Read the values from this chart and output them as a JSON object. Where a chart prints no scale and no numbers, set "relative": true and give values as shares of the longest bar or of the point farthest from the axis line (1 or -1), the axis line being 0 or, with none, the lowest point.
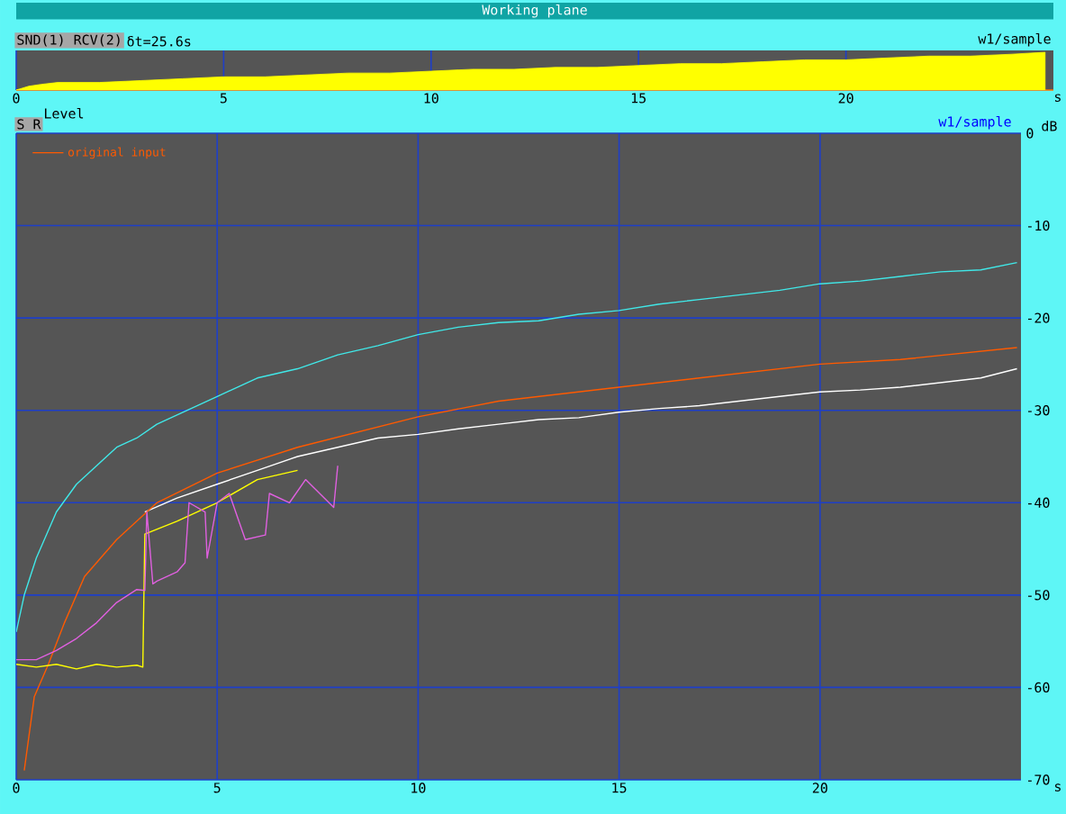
{
  "chart_data": [
    {
      "type": "area",
      "title": "Working plane",
      "xlabel": "s",
      "relative": true,
      "annotations": [
        "SND(1) RCV(2)",
        "δt=25.6s",
        "w1/sample"
      ],
      "x": [
        0,
        0.3,
        0.6,
        1,
        2,
        3,
        4,
        5,
        6,
        7,
        8,
        9,
        10,
        11,
        12,
        13,
        14,
        15,
        16,
        17,
        18,
        19,
        20,
        21,
        22,
        23,
        24,
        24.8
      ],
      "series": [
        {
          "color": "#ffff00",
          "values": [
            0,
            0.1,
            0.15,
            0.2,
            0.2,
            0.25,
            0.3,
            0.35,
            0.35,
            0.4,
            0.45,
            0.45,
            0.5,
            0.55,
            0.55,
            0.6,
            0.6,
            0.65,
            0.7,
            0.7,
            0.75,
            0.8,
            0.8,
            0.85,
            0.9,
            0.9,
            0.95,
            1
          ]
        }
      ],
      "xlim": [
        0,
        25
      ],
      "xticks": [
        0,
        5,
        10,
        15,
        20
      ],
      "grid": "x"
    },
    {
      "type": "line",
      "title": "Level",
      "xlabel": "s",
      "ylabel": "dB",
      "annotations": [
        "S R",
        "w1/sample"
      ],
      "xlim": [
        0,
        25
      ],
      "ylim": [
        -70,
        0
      ],
      "xticks": [
        0,
        5,
        10,
        15,
        20
      ],
      "yticks": [
        0,
        -10,
        -20,
        -30,
        -40,
        -50,
        -60,
        -70
      ],
      "grid": true,
      "legend": "top left",
      "series": [
        {
          "color": "#40e8e8",
          "x": [
            0,
            0.2,
            0.5,
            1,
            1.5,
            2,
            2.5,
            3,
            3.5,
            4,
            5,
            6,
            7,
            8,
            9,
            10,
            11,
            12,
            13,
            14,
            15,
            16,
            17,
            18,
            19,
            20,
            21,
            22,
            23,
            24,
            24.9
          ],
          "values": [
            -54,
            -50,
            -46,
            -41,
            -38,
            -36,
            -34,
            -33,
            -31.5,
            -30.5,
            -28.5,
            -26.5,
            -25.5,
            -24,
            -23,
            -21.8,
            -21,
            -20.5,
            -20.3,
            -19.6,
            -19.2,
            -18.5,
            -18,
            -17.5,
            -17,
            -16.3,
            -16,
            -15.5,
            -15,
            -14.8,
            -14
          ]
        },
        {
          "color": "#ffffff",
          "x": [
            3.2,
            4,
            5,
            6,
            7,
            8,
            9,
            10,
            11,
            12,
            13,
            14,
            15,
            16,
            17,
            18,
            19,
            20,
            21,
            22,
            23,
            24,
            24.9
          ],
          "values": [
            -41,
            -39.5,
            -38,
            -36.5,
            -35,
            -34,
            -33,
            -32.6,
            -32,
            -31.5,
            -31,
            -30.8,
            -30.2,
            -29.8,
            -29.5,
            -29,
            -28.5,
            -28,
            -27.8,
            -27.5,
            -27,
            -26.5,
            -25.5
          ]
        },
        {
          "name": "original input",
          "color": "#ff5a00",
          "x": [
            0.2,
            0.45,
            0.8,
            1.2,
            1.7,
            2.5,
            3.5,
            5,
            7,
            10,
            12,
            15,
            17,
            20,
            22,
            24.9
          ],
          "values": [
            -69,
            -61,
            -57.5,
            -53,
            -48,
            -44,
            -40,
            -36.8,
            -34,
            -30.7,
            -29,
            -27.5,
            -26.5,
            -25,
            -24.5,
            -23.2
          ]
        },
        {
          "color": "#ffff00",
          "x": [
            0,
            0.5,
            1,
            1.5,
            2,
            2.5,
            3,
            3.15,
            3.2,
            4,
            5,
            6,
            7
          ],
          "values": [
            -57.5,
            -57.8,
            -57.5,
            -58,
            -57.5,
            -57.8,
            -57.6,
            -57.8,
            -43.4,
            -42,
            -40,
            -37.5,
            -36.5
          ]
        },
        {
          "color": "#e060e0",
          "x": [
            0,
            0.5,
            1,
            1.5,
            2,
            2.5,
            3,
            3.2,
            3.25,
            3.4,
            3.5,
            4,
            4.2,
            4.3,
            4.7,
            4.75,
            5,
            5.3,
            5.7,
            6.2,
            6.3,
            6.8,
            7.2,
            7.9,
            8
          ],
          "values": [
            -57,
            -57,
            -56,
            -54.7,
            -53,
            -50.8,
            -49.4,
            -49.5,
            -41,
            -48.8,
            -48.5,
            -47.5,
            -46.5,
            -40,
            -41,
            -46,
            -40,
            -39,
            -44,
            -43.5,
            -39,
            -40,
            -37.5,
            -40.5,
            -36
          ]
        }
      ]
    }
  ]
}
